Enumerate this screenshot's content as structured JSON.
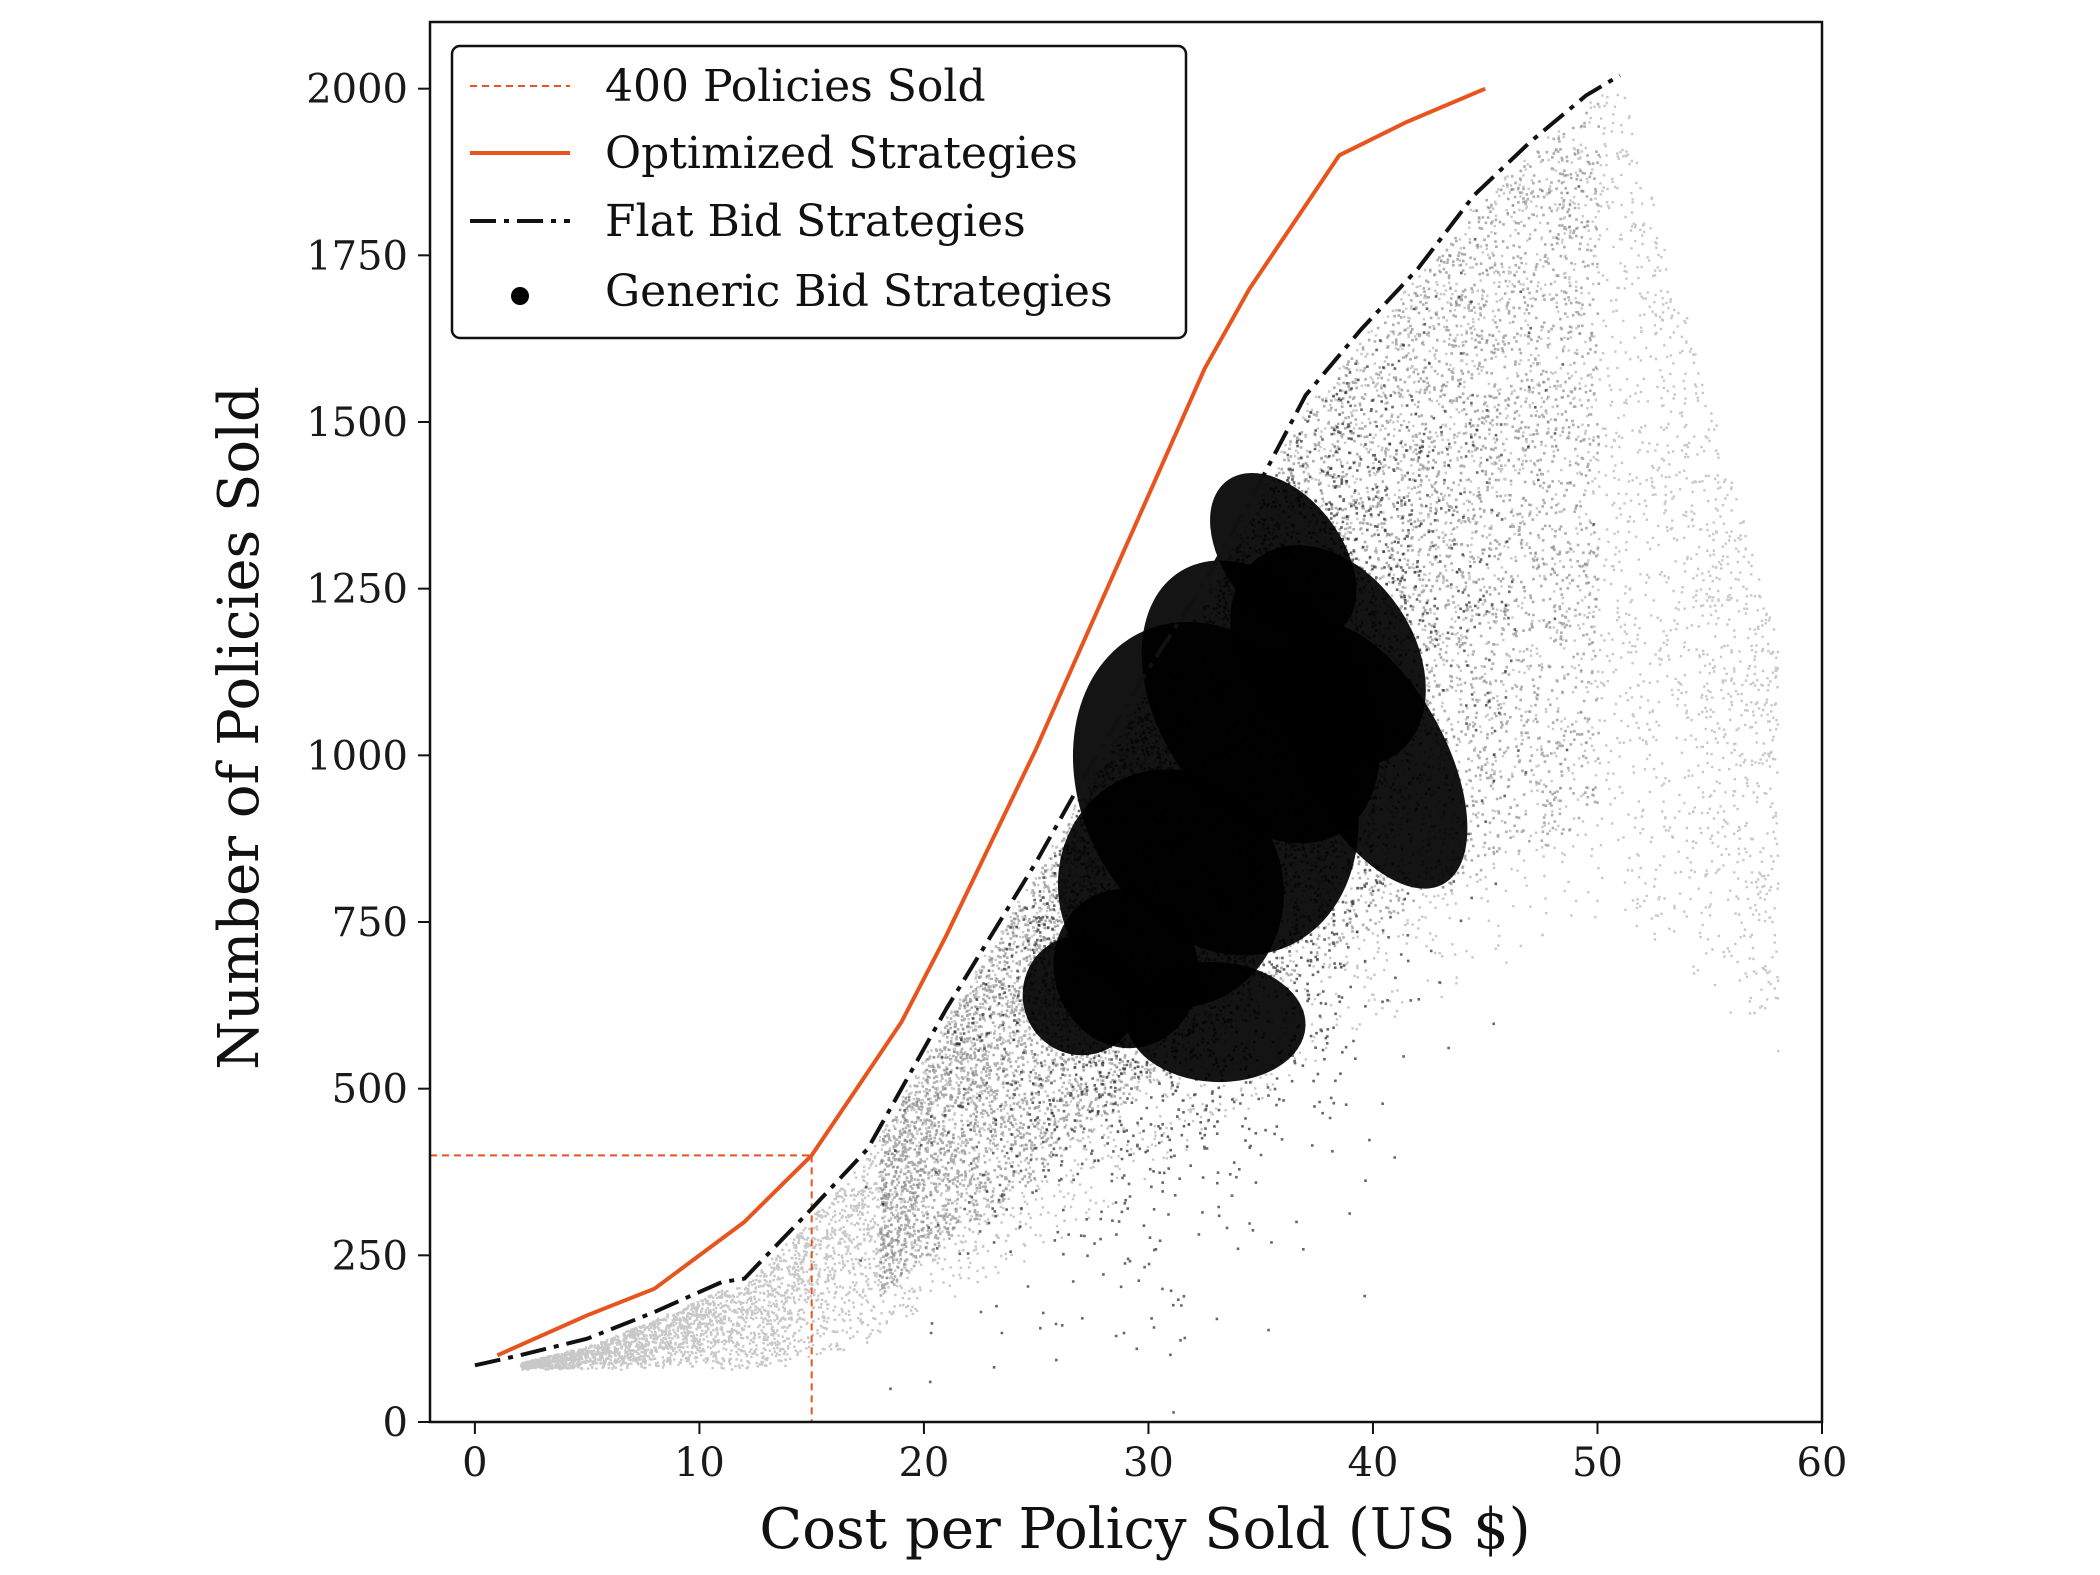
{
  "chart_data": {
    "type": "scatter",
    "title": "",
    "xlabel": "Cost per Policy Sold (US $)",
    "ylabel": "Number of Policies Sold",
    "xlim": [
      -2,
      60
    ],
    "ylim": [
      0,
      2100
    ],
    "x_ticks": [
      0,
      10,
      20,
      30,
      40,
      50,
      60
    ],
    "y_ticks": [
      0,
      250,
      500,
      750,
      1000,
      1250,
      1500,
      1750,
      2000
    ],
    "grid": false,
    "legend_position": "top-left",
    "colors": {
      "optimized": "#e8541e",
      "flat": "#111111",
      "generic": "#000000",
      "reference": "#e8541e"
    },
    "series": [
      {
        "name": "400 Policies Sold",
        "kind": "reference-lines",
        "style": "dashed",
        "x": 15,
        "y": 400
      },
      {
        "name": "Optimized Strategies",
        "kind": "line",
        "style": "solid",
        "x": [
          1,
          5,
          8,
          12,
          15,
          17,
          19,
          21,
          23,
          25,
          27.5,
          30,
          32.5,
          34.5,
          36.5,
          38.5,
          41.5,
          45
        ],
        "y": [
          100,
          160,
          200,
          300,
          400,
          500,
          600,
          730,
          870,
          1010,
          1200,
          1390,
          1580,
          1700,
          1800,
          1900,
          1950,
          2000
        ]
      },
      {
        "name": "Flat Bid Strategies",
        "kind": "line",
        "style": "dash-dot",
        "x": [
          0,
          2,
          5,
          8,
          11,
          12,
          13,
          15,
          17.5,
          19,
          21,
          23,
          25,
          27.5,
          30,
          32.5,
          34.5,
          37,
          39.5,
          42,
          44.5,
          47,
          49.5,
          51
        ],
        "y": [
          85,
          100,
          125,
          165,
          210,
          215,
          250,
          320,
          410,
          500,
          620,
          730,
          840,
          990,
          1130,
          1260,
          1380,
          1540,
          1640,
          1730,
          1840,
          1920,
          1990,
          2020
        ]
      },
      {
        "name": "Generic Bid Strategies",
        "kind": "scatter-cloud",
        "dense_core_x_range": [
          25,
          43
        ],
        "dense_core_y_range": [
          450,
          1400
        ],
        "spread_x_range": [
          2,
          60
        ],
        "spread_y_range": [
          80,
          2000
        ]
      }
    ]
  }
}
